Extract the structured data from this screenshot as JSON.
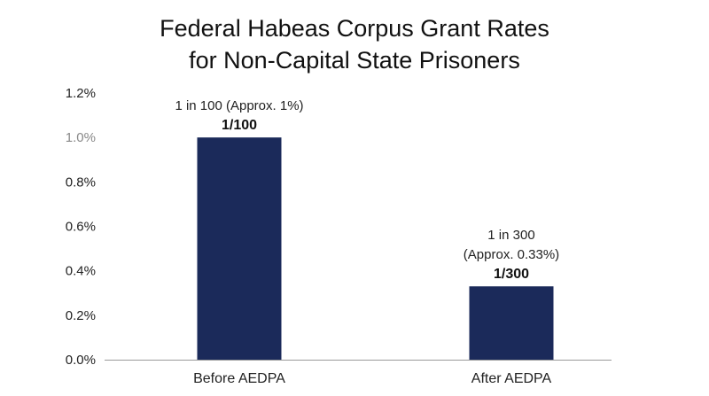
{
  "chart_data": {
    "type": "bar",
    "title": [
      "Federal Habeas Corpus Grant Rates",
      "for Non-Capital State Prisoners"
    ],
    "xlabel": "",
    "ylabel": "",
    "categories": [
      "Before AEDPA",
      "After AEDPA"
    ],
    "values": [
      1.0,
      0.33
    ],
    "ylim": [
      0,
      1.2
    ],
    "yticks": [
      "0.0%",
      "0.2%",
      "0.4%",
      "0.6%",
      "0.8%",
      "1.0%",
      "1.2%"
    ],
    "yticks_highlight_index": 5,
    "grid": false,
    "legend": "none",
    "bar_color": "#1b2a5a",
    "annotations": [
      {
        "lines": [
          "1 in 100 (Approx. 1%)"
        ],
        "bold": "1/100"
      },
      {
        "lines": [
          "1 in 300",
          "(Approx. 0.33%)"
        ],
        "bold": "1/300"
      }
    ]
  }
}
